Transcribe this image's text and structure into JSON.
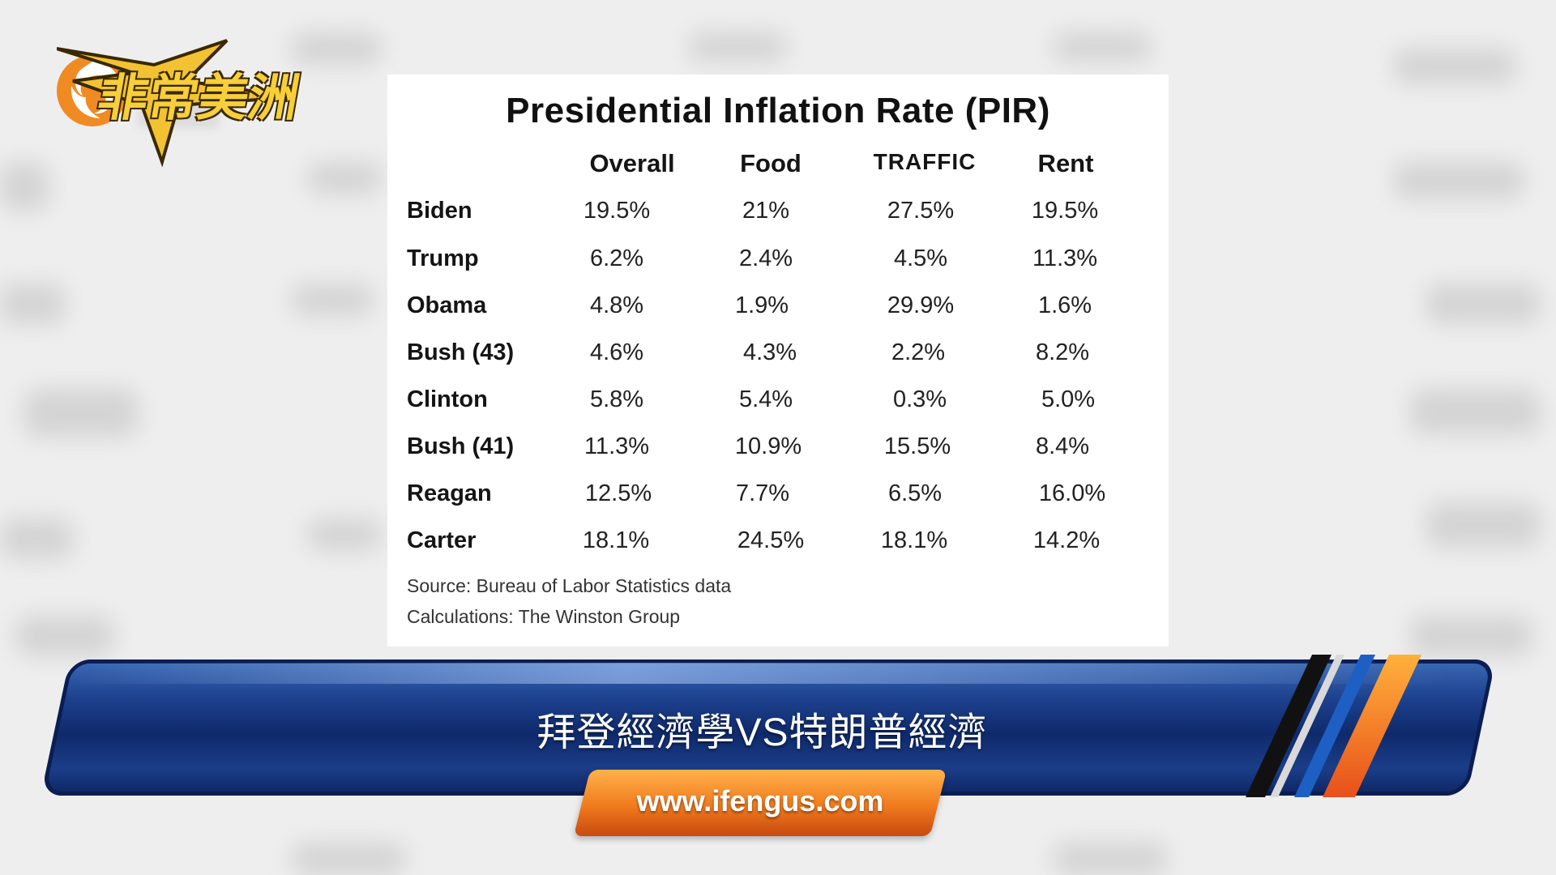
{
  "table": {
    "title": "Presidential Inflation Rate (PIR)",
    "headers": [
      "Overall",
      "Food",
      "TRAFFIC",
      "Rent"
    ],
    "rows": [
      {
        "name": "Biden",
        "values": [
          "19.5%",
          "21%",
          "27.5%",
          "19.5%"
        ]
      },
      {
        "name": "Trump",
        "values": [
          "6.2%",
          "2.4%",
          "4.5%",
          "11.3%"
        ]
      },
      {
        "name": "Obama",
        "values": [
          "4.8%",
          "1.9%",
          "29.9%",
          "1.6%"
        ]
      },
      {
        "name": "Bush  (43)",
        "values": [
          "4.6%",
          "4.3%",
          "2.2%",
          "8.2%"
        ]
      },
      {
        "name": "Clinton",
        "values": [
          "5.8%",
          "5.4%",
          "0.3%",
          "5.0%"
        ]
      },
      {
        "name": "Bush (41)",
        "values": [
          "11.3%",
          "10.9%",
          "15.5%",
          "8.4%"
        ]
      },
      {
        "name": "Reagan",
        "values": [
          "12.5%",
          "7.7%",
          "6.5%",
          "16.0%"
        ]
      },
      {
        "name": "Carter",
        "values": [
          "18.1%",
          "24.5%",
          "18.1%",
          "14.2%"
        ]
      }
    ],
    "source": "Source: Bureau of Labor Statistics data",
    "calculations": "Calculations: The Winston Group"
  },
  "banner": {
    "headline": "拜登經濟學VS特朗普經濟",
    "show_name": "非常美洲",
    "url": "www.ifengus.com"
  },
  "colors": {
    "banner_blue": "#1c3f8c",
    "accent_orange": "#f07a1e",
    "show_logo_gold": "#f6cf3a"
  }
}
